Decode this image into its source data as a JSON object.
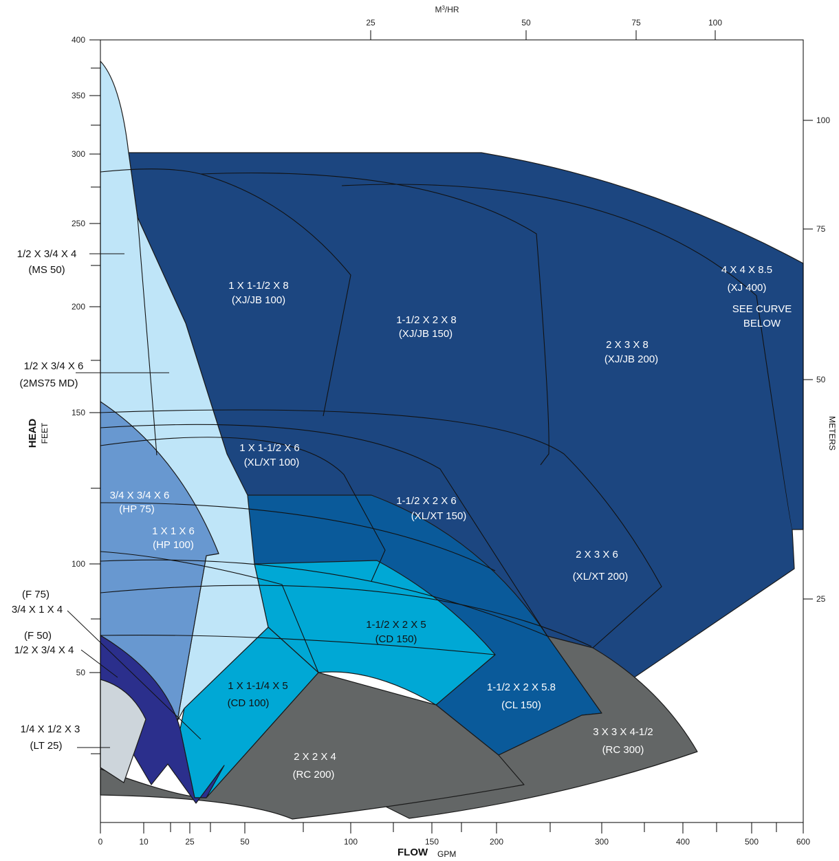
{
  "chart_data": {
    "type": "area",
    "title": "",
    "xlabel": "FLOW",
    "xlabel_unit": "GPM",
    "ylabel": "HEAD",
    "ylabel_unit": "FEET",
    "top_axis_label_html": "M³/HR",
    "right_axis_label": "METERS",
    "x_scale": "log",
    "x_ticks": [
      "0",
      "10",
      "25",
      "50",
      "100",
      "150",
      "200",
      "300",
      "400",
      "500",
      "600"
    ],
    "y_ticks": [
      "400",
      "350",
      "300",
      "250",
      "200",
      "150",
      "100",
      "50"
    ],
    "top_ticks": [
      "25",
      "50",
      "75",
      "100"
    ],
    "right_ticks": [
      "100",
      "75",
      "50",
      "25"
    ],
    "regions": [
      {
        "name": "4 X 4 X 8.5",
        "lines": [
          "4 X 4 X 8.5",
          "(XJ 400)",
          "SEE CURVE",
          "BELOW"
        ],
        "color": "#1c4680"
      },
      {
        "name": "2 X 3 X 8",
        "lines": [
          "2 X 3 X 8",
          "(XJ/JB 200)"
        ],
        "color": "#1c4680"
      },
      {
        "name": "1-1/2 X 2 X 8",
        "lines": [
          "1-1/2 X 2 X 8",
          "(XJ/JB 150)"
        ],
        "color": "#1c4680"
      },
      {
        "name": "1 X 1-1/2 X 8",
        "lines": [
          "1 X 1-1/2 X 8",
          "(XJ/JB 100)"
        ],
        "color": "#1c4680"
      },
      {
        "name": "2 X 3 X 6",
        "lines": [
          "2 X 3 X 6",
          "(XL/XT 200)"
        ],
        "color": "#1c4680"
      },
      {
        "name": "1-1/2 X 2 X 6",
        "lines": [
          "1-1/2 X 2 X 6",
          "(XL/XT 150)"
        ],
        "color": "#1c4680"
      },
      {
        "name": "1 X 1-1/2 X 6",
        "lines": [
          "1 X 1-1/2 X 6",
          "(XL/XT 100)"
        ],
        "color": "#1c4680"
      },
      {
        "name": "1-1/2 X 2 X 5.8",
        "lines": [
          "1-1/2 X 2 X 5.8",
          "(CL 150)"
        ],
        "color": "#0a5a9a"
      },
      {
        "name": "1-1/2 X 2 X 5",
        "lines": [
          "1-1/2 X 2 X 5",
          "(CD 150)"
        ],
        "color": "#00a8d5"
      },
      {
        "name": "1 X 1-1/4 X 5",
        "lines": [
          "1 X 1-1/4 X 5",
          "(CD 100)"
        ],
        "color": "#00a8d5"
      },
      {
        "name": "3 X 3 X 4-1/2",
        "lines": [
          "3 X 3 X 4-1/2",
          "(RC 300)"
        ],
        "color": "#636666"
      },
      {
        "name": "2 X 2 X 4",
        "lines": [
          "2 X 2 X 4",
          "(RC 200)"
        ],
        "color": "#636666"
      },
      {
        "name": "1/2 X 3/4 X 4",
        "lines": [
          "1/2 X 3/4 X 4",
          "(MS 50)"
        ],
        "color": "#bfe5f8"
      },
      {
        "name": "1/2 X 3/4 X 6",
        "lines": [
          "1/2 X 3/4 X 6",
          "(2MS75 MD)"
        ],
        "color": "#bfe5f8"
      },
      {
        "name": "3/4 X 3/4 X 6",
        "lines": [
          "3/4 X 3/4 X 6",
          "(HP 75)"
        ],
        "color": "#6898d0"
      },
      {
        "name": "1 X 1 X 6",
        "lines": [
          "1 X 1 X 6",
          "(HP 100)"
        ],
        "color": "#6898d0"
      },
      {
        "name": "3/4 X 1 X 4",
        "lines": [
          "(F 75)",
          "3/4 X 1 X 4"
        ],
        "color": "#2b2f8c"
      },
      {
        "name": "1/2 X 3/4 X 4",
        "lines": [
          "(F 50)",
          "1/2 X 3/4 X 4"
        ],
        "color": "#2b2f8c"
      },
      {
        "name": "1/4 X 1/2 X 3",
        "lines": [
          "1/4 X 1/2 X 3",
          "(LT 25)"
        ],
        "color": "#cdd5db"
      }
    ]
  }
}
